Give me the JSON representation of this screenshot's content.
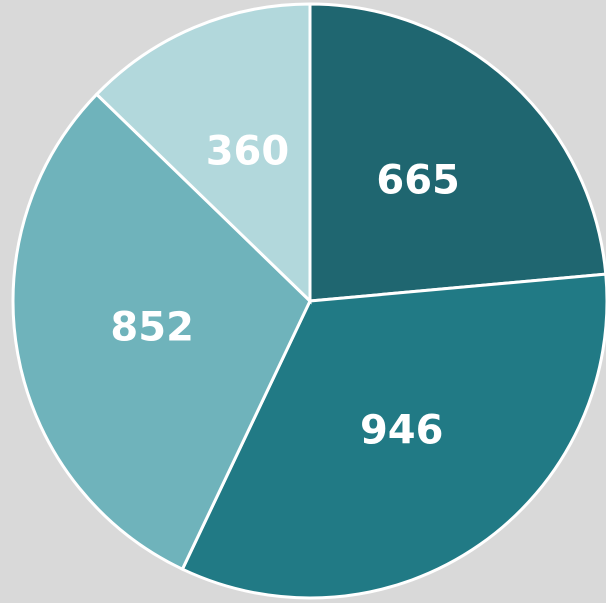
{
  "chart_data": {
    "type": "pie",
    "values": [
      665,
      946,
      852,
      360
    ],
    "colors": [
      "#1f6670",
      "#217a85",
      "#6fb3bb",
      "#b2d8dc"
    ]
  }
}
